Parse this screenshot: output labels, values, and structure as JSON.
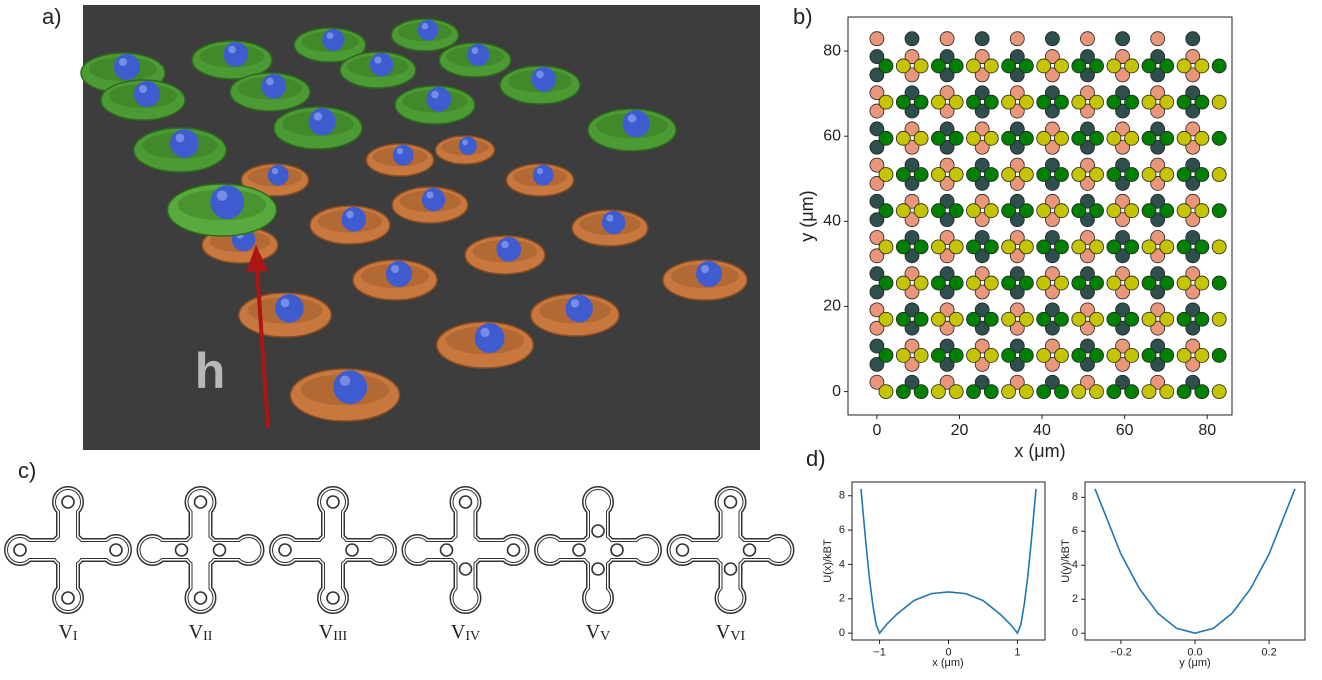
{
  "panels": {
    "a": "a)",
    "b": "b)",
    "c": "c)",
    "d": "d)"
  },
  "render": {
    "height_label": "h"
  },
  "vertices": [
    {
      "main": "V",
      "sub": "I"
    },
    {
      "main": "V",
      "sub": "II"
    },
    {
      "main": "V",
      "sub": "III"
    },
    {
      "main": "V",
      "sub": "IV"
    },
    {
      "main": "V",
      "sub": "V"
    },
    {
      "main": "V",
      "sub": "VI"
    }
  ],
  "chart_data": [
    {
      "type": "scatter",
      "xlabel": "x (μm)",
      "ylabel": "y (μm)",
      "xlim": [
        -7,
        86
      ],
      "ylim": [
        -5.5,
        88
      ],
      "xticks": [
        0,
        20,
        40,
        60,
        80
      ],
      "yticks": [
        0,
        20,
        40,
        60,
        80
      ],
      "series": [
        {
          "color": "#2f4f4f",
          "x": [
            0,
            0,
            0,
            0,
            0,
            0,
            0,
            0,
            0,
            0,
            8.5,
            8.5,
            8.5,
            8.5,
            8.5,
            8.5,
            8.5,
            8.5,
            8.5,
            8.5,
            17,
            17,
            17,
            17,
            17,
            17,
            17,
            17,
            17,
            17,
            25.5,
            25.5,
            25.5,
            25.5,
            25.5,
            25.5,
            25.5,
            25.5,
            25.5,
            25.5,
            34,
            34,
            34,
            34,
            34,
            34,
            34,
            34,
            34,
            34,
            42.5,
            42.5,
            42.5,
            42.5,
            42.5,
            42.5,
            42.5,
            42.5,
            42.5,
            42.5,
            51,
            51,
            51,
            51,
            51,
            51,
            51,
            51,
            51,
            51,
            59.5,
            59.5,
            59.5,
            59.5,
            59.5,
            59.5,
            59.5,
            59.5,
            59.5,
            59.5,
            68,
            68,
            68,
            68,
            68,
            68,
            68,
            68,
            68,
            68,
            76.5,
            76.5,
            76.5,
            76.5,
            76.5,
            76.5,
            76.5,
            76.5,
            76.5,
            76.5
          ],
          "values": [
            6.4,
            10.7,
            23.4,
            27.7,
            40.4,
            44.7,
            57.4,
            61.7,
            74.4,
            78.7,
            2.2,
            14.9,
            19.2,
            31.9,
            36.2,
            48.9,
            53.2,
            65.9,
            70.2,
            82.9,
            6.4,
            10.7,
            23.4,
            27.7,
            40.4,
            44.7,
            57.4,
            61.7,
            74.4,
            78.7,
            2.2,
            14.9,
            19.2,
            31.9,
            36.2,
            48.9,
            53.2,
            65.9,
            70.2,
            82.9,
            6.4,
            10.7,
            23.4,
            27.7,
            40.4,
            44.7,
            57.4,
            61.7,
            74.4,
            78.7,
            2.2,
            14.9,
            19.2,
            31.9,
            36.2,
            48.9,
            53.2,
            65.9,
            70.2,
            82.9,
            6.4,
            10.7,
            23.4,
            27.7,
            40.4,
            44.7,
            57.4,
            61.7,
            74.4,
            78.7,
            2.2,
            14.9,
            19.2,
            31.9,
            36.2,
            48.9,
            53.2,
            65.9,
            70.2,
            82.9,
            6.4,
            10.7,
            23.4,
            27.7,
            40.4,
            44.7,
            57.4,
            61.7,
            74.4,
            78.7,
            2.2,
            14.9,
            19.2,
            31.9,
            36.2,
            48.9,
            53.2,
            65.9,
            70.2,
            82.9
          ]
        },
        {
          "color": "#e9967a",
          "x": [
            0,
            0,
            0,
            0,
            0,
            0,
            0,
            0,
            0,
            0,
            8.5,
            8.5,
            8.5,
            8.5,
            8.5,
            8.5,
            8.5,
            8.5,
            8.5,
            8.5,
            17,
            17,
            17,
            17,
            17,
            17,
            17,
            17,
            17,
            17,
            25.5,
            25.5,
            25.5,
            25.5,
            25.5,
            25.5,
            25.5,
            25.5,
            25.5,
            25.5,
            34,
            34,
            34,
            34,
            34,
            34,
            34,
            34,
            34,
            34,
            42.5,
            42.5,
            42.5,
            42.5,
            42.5,
            42.5,
            42.5,
            42.5,
            42.5,
            42.5,
            51,
            51,
            51,
            51,
            51,
            51,
            51,
            51,
            51,
            51,
            59.5,
            59.5,
            59.5,
            59.5,
            59.5,
            59.5,
            59.5,
            59.5,
            59.5,
            59.5,
            68,
            68,
            68,
            68,
            68,
            68,
            68,
            68,
            68,
            68,
            76.5,
            76.5,
            76.5,
            76.5,
            76.5,
            76.5,
            76.5,
            76.5,
            76.5,
            76.5
          ],
          "values": [
            2.2,
            14.9,
            19.2,
            31.9,
            36.2,
            48.9,
            53.2,
            65.9,
            70.2,
            82.9,
            6.4,
            10.7,
            23.4,
            27.7,
            40.4,
            44.7,
            57.4,
            61.7,
            74.4,
            78.7,
            2.2,
            14.9,
            19.2,
            31.9,
            36.2,
            48.9,
            53.2,
            65.9,
            70.2,
            82.9,
            6.4,
            10.7,
            23.4,
            27.7,
            40.4,
            44.7,
            57.4,
            61.7,
            74.4,
            78.7,
            2.2,
            14.9,
            19.2,
            31.9,
            36.2,
            48.9,
            53.2,
            65.9,
            70.2,
            82.9,
            6.4,
            10.7,
            23.4,
            27.7,
            40.4,
            44.7,
            57.4,
            61.7,
            74.4,
            78.7,
            2.2,
            14.9,
            19.2,
            31.9,
            36.2,
            48.9,
            53.2,
            65.9,
            70.2,
            82.9,
            6.4,
            10.7,
            23.4,
            27.7,
            40.4,
            44.7,
            57.4,
            61.7,
            74.4,
            78.7,
            2.2,
            14.9,
            19.2,
            31.9,
            36.2,
            48.9,
            53.2,
            65.9,
            70.2,
            82.9,
            6.4,
            10.7,
            23.4,
            27.7,
            40.4,
            44.7,
            57.4,
            61.7,
            74.4,
            78.7
          ]
        },
        {
          "color": "#008000",
          "x": [
            6.4,
            10.7,
            23.4,
            27.7,
            40.4,
            44.7,
            57.4,
            61.7,
            74.4,
            78.7,
            2.2,
            14.9,
            19.2,
            31.9,
            36.2,
            48.9,
            53.2,
            65.9,
            70.2,
            82.9,
            6.4,
            10.7,
            23.4,
            27.7,
            40.4,
            44.7,
            57.4,
            61.7,
            74.4,
            78.7,
            2.2,
            14.9,
            19.2,
            31.9,
            36.2,
            48.9,
            53.2,
            65.9,
            70.2,
            82.9,
            6.4,
            10.7,
            23.4,
            27.7,
            40.4,
            44.7,
            57.4,
            61.7,
            74.4,
            78.7,
            2.2,
            14.9,
            19.2,
            31.9,
            36.2,
            48.9,
            53.2,
            65.9,
            70.2,
            82.9,
            6.4,
            10.7,
            23.4,
            27.7,
            40.4,
            44.7,
            57.4,
            61.7,
            74.4,
            78.7,
            2.2,
            14.9,
            19.2,
            31.9,
            36.2,
            48.9,
            53.2,
            65.9,
            70.2,
            82.9,
            6.4,
            10.7,
            23.4,
            27.7,
            40.4,
            44.7,
            57.4,
            61.7,
            74.4,
            78.7,
            2.2,
            14.9,
            19.2,
            31.9,
            36.2,
            48.9,
            53.2,
            65.9,
            70.2,
            82.9
          ],
          "values": [
            0,
            0,
            0,
            0,
            0,
            0,
            0,
            0,
            0,
            0,
            8.5,
            8.5,
            8.5,
            8.5,
            8.5,
            8.5,
            8.5,
            8.5,
            8.5,
            8.5,
            17,
            17,
            17,
            17,
            17,
            17,
            17,
            17,
            17,
            17,
            25.5,
            25.5,
            25.5,
            25.5,
            25.5,
            25.5,
            25.5,
            25.5,
            25.5,
            25.5,
            34,
            34,
            34,
            34,
            34,
            34,
            34,
            34,
            34,
            34,
            42.5,
            42.5,
            42.5,
            42.5,
            42.5,
            42.5,
            42.5,
            42.5,
            42.5,
            42.5,
            51,
            51,
            51,
            51,
            51,
            51,
            51,
            51,
            51,
            51,
            59.5,
            59.5,
            59.5,
            59.5,
            59.5,
            59.5,
            59.5,
            59.5,
            59.5,
            59.5,
            68,
            68,
            68,
            68,
            68,
            68,
            68,
            68,
            68,
            68,
            76.5,
            76.5,
            76.5,
            76.5,
            76.5,
            76.5,
            76.5,
            76.5,
            76.5,
            76.5
          ]
        },
        {
          "color": "#c4c400",
          "x": [
            2.2,
            14.9,
            19.2,
            31.9,
            36.2,
            48.9,
            53.2,
            65.9,
            70.2,
            82.9,
            6.4,
            10.7,
            23.4,
            27.7,
            40.4,
            44.7,
            57.4,
            61.7,
            74.4,
            78.7,
            2.2,
            14.9,
            19.2,
            31.9,
            36.2,
            48.9,
            53.2,
            65.9,
            70.2,
            82.9,
            6.4,
            10.7,
            23.4,
            27.7,
            40.4,
            44.7,
            57.4,
            61.7,
            74.4,
            78.7,
            2.2,
            14.9,
            19.2,
            31.9,
            36.2,
            48.9,
            53.2,
            65.9,
            70.2,
            82.9,
            6.4,
            10.7,
            23.4,
            27.7,
            40.4,
            44.7,
            57.4,
            61.7,
            74.4,
            78.7,
            2.2,
            14.9,
            19.2,
            31.9,
            36.2,
            48.9,
            53.2,
            65.9,
            70.2,
            82.9,
            6.4,
            10.7,
            23.4,
            27.7,
            40.4,
            44.7,
            57.4,
            61.7,
            74.4,
            78.7,
            2.2,
            14.9,
            19.2,
            31.9,
            36.2,
            48.9,
            53.2,
            65.9,
            70.2,
            82.9,
            6.4,
            10.7,
            23.4,
            27.7,
            40.4,
            44.7,
            57.4,
            61.7,
            74.4,
            78.7
          ],
          "values": [
            0,
            0,
            0,
            0,
            0,
            0,
            0,
            0,
            0,
            0,
            8.5,
            8.5,
            8.5,
            8.5,
            8.5,
            8.5,
            8.5,
            8.5,
            8.5,
            8.5,
            17,
            17,
            17,
            17,
            17,
            17,
            17,
            17,
            17,
            17,
            25.5,
            25.5,
            25.5,
            25.5,
            25.5,
            25.5,
            25.5,
            25.5,
            25.5,
            25.5,
            34,
            34,
            34,
            34,
            34,
            34,
            34,
            34,
            34,
            34,
            42.5,
            42.5,
            42.5,
            42.5,
            42.5,
            42.5,
            42.5,
            42.5,
            42.5,
            42.5,
            51,
            51,
            51,
            51,
            51,
            51,
            51,
            51,
            51,
            51,
            59.5,
            59.5,
            59.5,
            59.5,
            59.5,
            59.5,
            59.5,
            59.5,
            59.5,
            59.5,
            68,
            68,
            68,
            68,
            68,
            68,
            68,
            68,
            68,
            68,
            76.5,
            76.5,
            76.5,
            76.5,
            76.5,
            76.5,
            76.5,
            76.5,
            76.5,
            76.5
          ]
        }
      ]
    },
    {
      "type": "line",
      "xlabel": "x (μm)",
      "ylabel": "U(x)/kBT",
      "color": "#1f77b4",
      "x": [
        -1.27,
        -1.2,
        -1.15,
        -1.1,
        -1.05,
        -1.0,
        -0.9,
        -0.75,
        -0.5,
        -0.25,
        0,
        0.25,
        0.5,
        0.75,
        0.9,
        1.0,
        1.05,
        1.1,
        1.15,
        1.2,
        1.27
      ],
      "values": [
        8.4,
        5.3,
        3.3,
        1.7,
        0.5,
        0,
        0.5,
        1.1,
        1.9,
        2.3,
        2.4,
        2.3,
        1.9,
        1.1,
        0.5,
        0,
        0.5,
        1.7,
        3.3,
        5.3,
        8.4
      ],
      "xlim": [
        -1.4,
        1.4
      ],
      "ylim": [
        -0.4,
        8.8
      ],
      "xticks": [
        {
          "value": -1,
          "label": "−1"
        },
        0,
        1
      ],
      "yticks": [
        0,
        2,
        4,
        6,
        8
      ]
    },
    {
      "type": "line",
      "xlabel": "y (μm)",
      "ylabel": "U(y)/kBT",
      "color": "#1f77b4",
      "x": [
        -0.27,
        -0.2,
        -0.15,
        -0.1,
        -0.05,
        0,
        0.05,
        0.1,
        0.15,
        0.2,
        0.27
      ],
      "values": [
        8.5,
        4.66,
        2.62,
        1.17,
        0.29,
        0,
        0.29,
        1.17,
        2.62,
        4.66,
        8.5
      ],
      "xlim": [
        -0.297,
        0.297
      ],
      "ylim": [
        -0.4,
        8.9
      ],
      "xticks": [
        {
          "value": -0.2,
          "label": "−0.2"
        },
        {
          "value": 0,
          "label": "0.0"
        },
        0.2
      ],
      "yticks": [
        0,
        2,
        4,
        6,
        8
      ]
    }
  ]
}
